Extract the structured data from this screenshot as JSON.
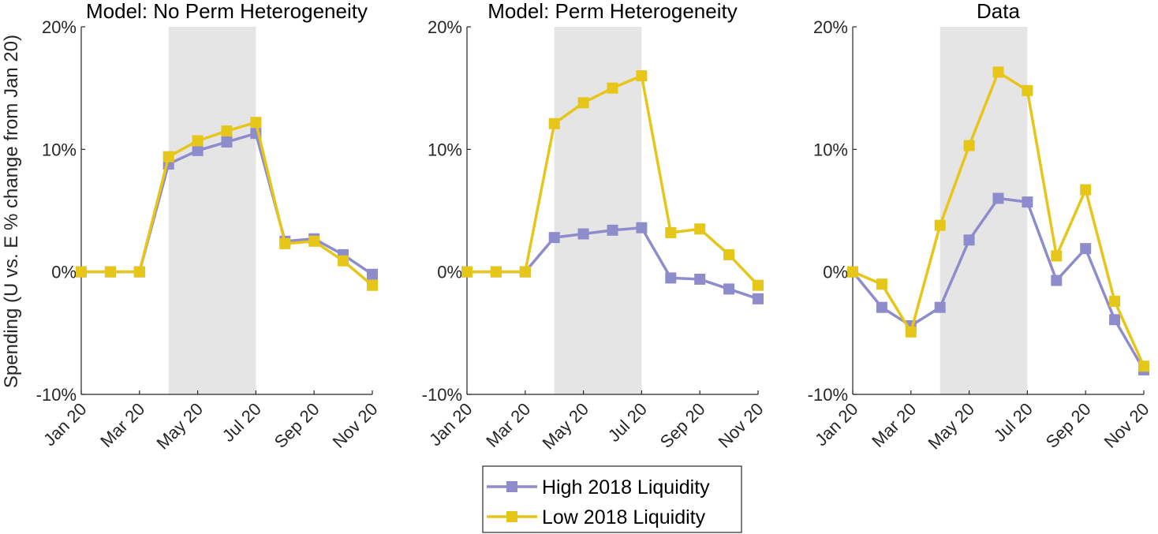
{
  "ylabel": "Spending (U vs. E % change from Jan 20)",
  "legend": {
    "high_label": "High 2018 Liquidity",
    "low_label": "Low 2018 Liquidity"
  },
  "colors": {
    "high": "#8f8ccc",
    "low": "#e6c619",
    "shade": "#e5e5e5",
    "axis": "#262626"
  },
  "chart_data": [
    {
      "type": "line",
      "title": "Model: No Perm Heterogeneity",
      "categories": [
        "Jan 20",
        "Feb 20",
        "Mar 20",
        "Apr 20",
        "May 20",
        "Jun 20",
        "Jul 20",
        "Aug 20",
        "Sep 20",
        "Oct 20",
        "Nov 20"
      ],
      "tick_labels": [
        "Jan 20",
        "Mar 20",
        "May 20",
        "Jul 20",
        "Sep 20",
        "Nov 20"
      ],
      "shaded_range": [
        "Apr 20",
        "Jul 20"
      ],
      "ylim": [
        -10,
        20
      ],
      "yticks": [
        "-10%",
        "0%",
        "10%",
        "20%"
      ],
      "series": [
        {
          "name": "High 2018 Liquidity",
          "values": [
            0,
            0,
            0,
            8.8,
            9.9,
            10.6,
            11.3,
            2.5,
            2.7,
            1.4,
            -0.2
          ]
        },
        {
          "name": "Low 2018 Liquidity",
          "values": [
            0,
            0,
            0,
            9.4,
            10.7,
            11.5,
            12.2,
            2.3,
            2.5,
            0.9,
            -1.1
          ]
        }
      ]
    },
    {
      "type": "line",
      "title": "Model: Perm Heterogeneity",
      "categories": [
        "Jan 20",
        "Feb 20",
        "Mar 20",
        "Apr 20",
        "May 20",
        "Jun 20",
        "Jul 20",
        "Aug 20",
        "Sep 20",
        "Oct 20",
        "Nov 20"
      ],
      "tick_labels": [
        "Jan 20",
        "Mar 20",
        "May 20",
        "Jul 20",
        "Sep 20",
        "Nov 20"
      ],
      "shaded_range": [
        "Apr 20",
        "Jul 20"
      ],
      "ylim": [
        -10,
        20
      ],
      "yticks": [
        "-10%",
        "0%",
        "10%",
        "20%"
      ],
      "series": [
        {
          "name": "High 2018 Liquidity",
          "values": [
            0,
            0,
            0,
            2.8,
            3.1,
            3.4,
            3.6,
            -0.5,
            -0.6,
            -1.4,
            -2.2
          ]
        },
        {
          "name": "Low 2018 Liquidity",
          "values": [
            0,
            0,
            0,
            12.1,
            13.8,
            15.0,
            16.0,
            3.2,
            3.5,
            1.4,
            -1.1
          ]
        }
      ]
    },
    {
      "type": "line",
      "title": "Data",
      "categories": [
        "Jan 20",
        "Feb 20",
        "Mar 20",
        "Apr 20",
        "May 20",
        "Jun 20",
        "Jul 20",
        "Aug 20",
        "Sep 20",
        "Oct 20",
        "Nov 20"
      ],
      "tick_labels": [
        "Jan 20",
        "Mar 20",
        "May 20",
        "Jul 20",
        "Sep 20",
        "Nov 20"
      ],
      "shaded_range": [
        "Apr 20",
        "Jul 20"
      ],
      "ylim": [
        -10,
        20
      ],
      "yticks": [
        "-10%",
        "0%",
        "10%",
        "20%"
      ],
      "series": [
        {
          "name": "High 2018 Liquidity",
          "values": [
            0,
            -2.9,
            -4.4,
            -2.9,
            2.6,
            6.0,
            5.7,
            -0.7,
            1.9,
            -3.9,
            -8.0
          ]
        },
        {
          "name": "Low 2018 Liquidity",
          "values": [
            0,
            -1.0,
            -4.9,
            3.8,
            10.3,
            16.3,
            14.8,
            1.3,
            6.7,
            -2.4,
            -7.7
          ]
        }
      ]
    }
  ]
}
